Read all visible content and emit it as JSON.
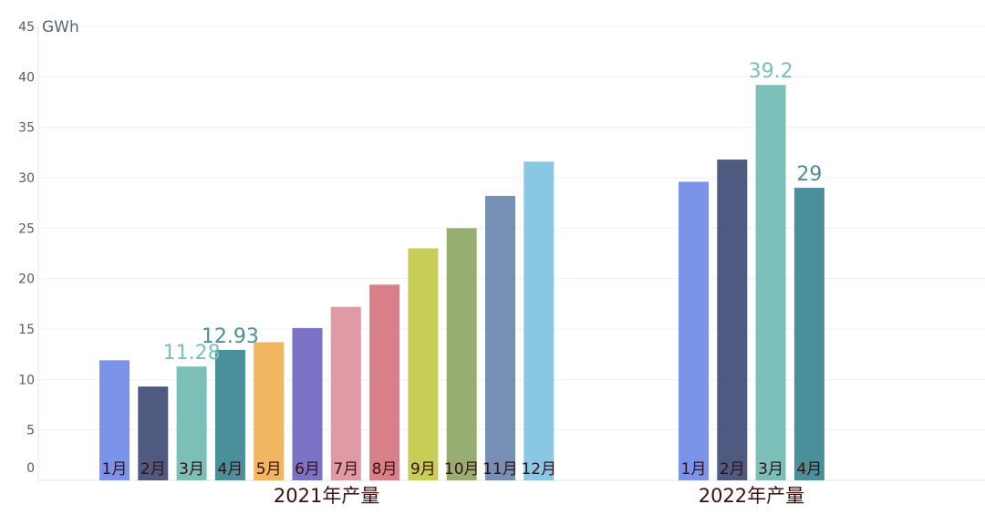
{
  "chart_data": {
    "type": "bar",
    "ylabel": "GWh",
    "ylim": [
      0,
      45
    ],
    "yticks": [
      0,
      5,
      10,
      15,
      20,
      25,
      30,
      35,
      40,
      45
    ],
    "grid": true,
    "groups": [
      {
        "name": "2021年产量",
        "categories": [
          "1月",
          "2月",
          "3月",
          "4月",
          "5月",
          "6月",
          "7月",
          "8月",
          "9月",
          "10月",
          "11月",
          "12月"
        ],
        "values": [
          11.9,
          9.3,
          11.28,
          12.93,
          13.7,
          15.1,
          17.2,
          19.4,
          23.0,
          25.0,
          28.2,
          31.6
        ],
        "colors": [
          "#7b93e8",
          "#4e5a80",
          "#7bbfb8",
          "#4a8f9a",
          "#f0b660",
          "#7a72c4",
          "#e09aa5",
          "#d97f8a",
          "#c7cd55",
          "#97ad72",
          "#7590b4",
          "#89c7e4"
        ],
        "data_labels": [
          {
            "index": 2,
            "text": "11.28",
            "color": "#7bbfb8"
          },
          {
            "index": 3,
            "text": "12.93",
            "color": "#4a8f9a"
          }
        ]
      },
      {
        "name": "2022年产量",
        "categories": [
          "1月",
          "2月",
          "3月",
          "4月"
        ],
        "values": [
          29.6,
          31.8,
          39.2,
          29.0
        ],
        "colors": [
          "#7b93e8",
          "#4e5a80",
          "#7bbfb8",
          "#4a8f9a"
        ],
        "data_labels": [
          {
            "index": 2,
            "text": "39.2",
            "color": "#7bbfb8"
          },
          {
            "index": 3,
            "text": "29",
            "color": "#4a8f9a"
          }
        ]
      }
    ]
  }
}
